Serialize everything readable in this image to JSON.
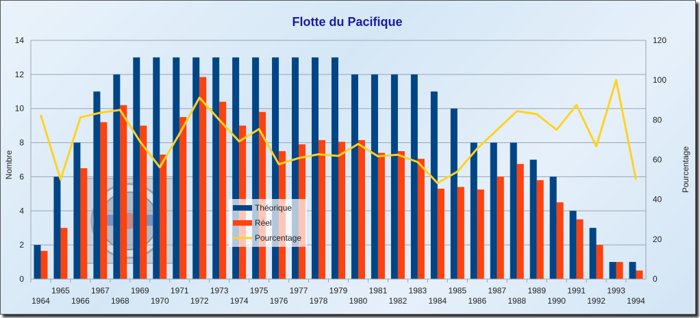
{
  "chart_data": {
    "type": "bar",
    "title": "Flotte du Pacifique",
    "ylabel": "Nombre",
    "y2label": "Pourcentage",
    "ylim": [
      0,
      14
    ],
    "y2lim": [
      0,
      120
    ],
    "yticks": [
      "0",
      "2",
      "4",
      "6",
      "8",
      "10",
      "12",
      "14"
    ],
    "y2ticks": [
      "0",
      "20",
      "40",
      "60",
      "80",
      "100",
      "120"
    ],
    "grid": true,
    "legend_position": "center-left",
    "categories": [
      "1964",
      "1965",
      "1966",
      "1967",
      "1968",
      "1969",
      "1970",
      "1971",
      "1972",
      "1973",
      "1974",
      "1975",
      "1976",
      "1977",
      "1978",
      "1979",
      "1980",
      "1981",
      "1982",
      "1983",
      "1984",
      "1985",
      "1986",
      "1987",
      "1988",
      "1989",
      "1990",
      "1991",
      "1992",
      "1993",
      "1994"
    ],
    "series": [
      {
        "name": "Théorique",
        "type": "bar",
        "axis": "left",
        "color": "#004586",
        "values": [
          2,
          6,
          8,
          11,
          12,
          13,
          13,
          13,
          13,
          13,
          13,
          13,
          13,
          13,
          13,
          13,
          12,
          12,
          12,
          12,
          11,
          10,
          8,
          8,
          8,
          7,
          6,
          4,
          3,
          1,
          1
        ]
      },
      {
        "name": "Réel",
        "type": "bar",
        "axis": "left",
        "color": "#ff420e",
        "values": [
          1.65,
          3,
          6.5,
          9.2,
          10.2,
          9,
          7.3,
          9.5,
          11.85,
          10.4,
          9,
          9.8,
          7.5,
          7.9,
          8.15,
          8.05,
          8.15,
          7.4,
          7.5,
          7.05,
          5.3,
          5.4,
          5.25,
          6,
          6.75,
          5.8,
          4.5,
          3.5,
          2,
          1,
          0.5
        ]
      },
      {
        "name": "Pourcentage",
        "type": "line",
        "axis": "right",
        "color": "#ffd320",
        "values": [
          82.5,
          50,
          81.3,
          83.6,
          85,
          69.2,
          56.2,
          73.1,
          91.2,
          80,
          69.2,
          75.4,
          57.7,
          60.8,
          62.7,
          61.9,
          67.9,
          61.7,
          62.5,
          58.8,
          48.2,
          54,
          65.6,
          75,
          84.4,
          82.9,
          75,
          87.5,
          66.7,
          100,
          50
        ]
      }
    ]
  }
}
